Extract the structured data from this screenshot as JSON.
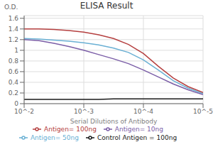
{
  "chart_data": {
    "type": "line",
    "title": "ELISA Result",
    "x_label": "Serial Dilutions of Antibody",
    "y_label": "O.D.",
    "log": "x",
    "grid": true,
    "legend": "bottom",
    "x": [
      0.01,
      0.005623413251903491,
      0.0031622776601683794,
      0.0017782794100389228,
      0.001,
      0.0005623413251903491,
      0.00031622776601683794,
      0.00017782794100389227,
      0.0001,
      5.623413251903491e-05,
      3.1622776601683795e-05,
      1.7782794100389226e-05,
      1e-05
    ],
    "xlim": [
      0.01,
      1e-05
    ],
    "xticks": [
      {
        "value": 0.01,
        "label": "10^-2"
      },
      {
        "value": 0.001,
        "label": "10^-3"
      },
      {
        "value": 0.0001,
        "label": "10^-4"
      },
      {
        "value": 1e-05,
        "label": "10^-5"
      }
    ],
    "ylim": [
      0,
      1.65
    ],
    "yticks": [
      0,
      0.2,
      0.4,
      0.6,
      0.8,
      1,
      1.2,
      1.4,
      1.6
    ],
    "series": [
      {
        "name": "Control Antigen = 100ng",
        "color": "#1a1a1a",
        "values": [
          0.08,
          0.08,
          0.08,
          0.08,
          0.08,
          0.08,
          0.09,
          0.09,
          0.09,
          0.09,
          0.09,
          0.09,
          0.09
        ]
      },
      {
        "name": "Antigen= 10ng",
        "color": "#7b5ea7",
        "values": [
          1.2,
          1.18,
          1.13,
          1.07,
          1.0,
          0.92,
          0.84,
          0.75,
          0.63,
          0.5,
          0.37,
          0.26,
          0.17
        ]
      },
      {
        "name": "Antigen= 50ng",
        "color": "#6ab0d4",
        "values": [
          1.22,
          1.21,
          1.19,
          1.17,
          1.14,
          1.1,
          1.04,
          0.96,
          0.82,
          0.63,
          0.43,
          0.29,
          0.19
        ]
      },
      {
        "name": "Antigen= 100ng",
        "color": "#b54040",
        "values": [
          1.4,
          1.4,
          1.39,
          1.37,
          1.34,
          1.29,
          1.22,
          1.11,
          0.94,
          0.7,
          0.48,
          0.32,
          0.21
        ]
      }
    ]
  }
}
